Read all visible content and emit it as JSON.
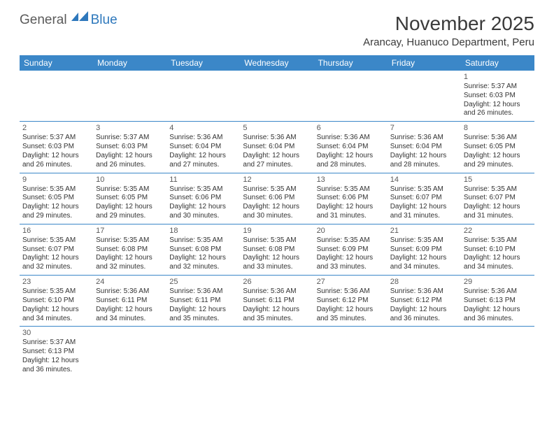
{
  "logo": {
    "general": "General",
    "blue": "Blue"
  },
  "title": "November 2025",
  "subtitle": "Arancay, Huanuco Department, Peru",
  "colors": {
    "header_bg": "#3b87c8",
    "header_text": "#ffffff",
    "text": "#333333",
    "title_text": "#3a3a3a",
    "logo_gray": "#5a5a5a",
    "logo_blue": "#2e78bc",
    "border": "#3b87c8"
  },
  "day_headers": [
    "Sunday",
    "Monday",
    "Tuesday",
    "Wednesday",
    "Thursday",
    "Friday",
    "Saturday"
  ],
  "weeks": [
    [
      null,
      null,
      null,
      null,
      null,
      null,
      {
        "n": "1",
        "sr": "Sunrise: 5:37 AM",
        "ss": "Sunset: 6:03 PM",
        "d1": "Daylight: 12 hours",
        "d2": "and 26 minutes."
      }
    ],
    [
      {
        "n": "2",
        "sr": "Sunrise: 5:37 AM",
        "ss": "Sunset: 6:03 PM",
        "d1": "Daylight: 12 hours",
        "d2": "and 26 minutes."
      },
      {
        "n": "3",
        "sr": "Sunrise: 5:37 AM",
        "ss": "Sunset: 6:03 PM",
        "d1": "Daylight: 12 hours",
        "d2": "and 26 minutes."
      },
      {
        "n": "4",
        "sr": "Sunrise: 5:36 AM",
        "ss": "Sunset: 6:04 PM",
        "d1": "Daylight: 12 hours",
        "d2": "and 27 minutes."
      },
      {
        "n": "5",
        "sr": "Sunrise: 5:36 AM",
        "ss": "Sunset: 6:04 PM",
        "d1": "Daylight: 12 hours",
        "d2": "and 27 minutes."
      },
      {
        "n": "6",
        "sr": "Sunrise: 5:36 AM",
        "ss": "Sunset: 6:04 PM",
        "d1": "Daylight: 12 hours",
        "d2": "and 28 minutes."
      },
      {
        "n": "7",
        "sr": "Sunrise: 5:36 AM",
        "ss": "Sunset: 6:04 PM",
        "d1": "Daylight: 12 hours",
        "d2": "and 28 minutes."
      },
      {
        "n": "8",
        "sr": "Sunrise: 5:36 AM",
        "ss": "Sunset: 6:05 PM",
        "d1": "Daylight: 12 hours",
        "d2": "and 29 minutes."
      }
    ],
    [
      {
        "n": "9",
        "sr": "Sunrise: 5:35 AM",
        "ss": "Sunset: 6:05 PM",
        "d1": "Daylight: 12 hours",
        "d2": "and 29 minutes."
      },
      {
        "n": "10",
        "sr": "Sunrise: 5:35 AM",
        "ss": "Sunset: 6:05 PM",
        "d1": "Daylight: 12 hours",
        "d2": "and 29 minutes."
      },
      {
        "n": "11",
        "sr": "Sunrise: 5:35 AM",
        "ss": "Sunset: 6:06 PM",
        "d1": "Daylight: 12 hours",
        "d2": "and 30 minutes."
      },
      {
        "n": "12",
        "sr": "Sunrise: 5:35 AM",
        "ss": "Sunset: 6:06 PM",
        "d1": "Daylight: 12 hours",
        "d2": "and 30 minutes."
      },
      {
        "n": "13",
        "sr": "Sunrise: 5:35 AM",
        "ss": "Sunset: 6:06 PM",
        "d1": "Daylight: 12 hours",
        "d2": "and 31 minutes."
      },
      {
        "n": "14",
        "sr": "Sunrise: 5:35 AM",
        "ss": "Sunset: 6:07 PM",
        "d1": "Daylight: 12 hours",
        "d2": "and 31 minutes."
      },
      {
        "n": "15",
        "sr": "Sunrise: 5:35 AM",
        "ss": "Sunset: 6:07 PM",
        "d1": "Daylight: 12 hours",
        "d2": "and 31 minutes."
      }
    ],
    [
      {
        "n": "16",
        "sr": "Sunrise: 5:35 AM",
        "ss": "Sunset: 6:07 PM",
        "d1": "Daylight: 12 hours",
        "d2": "and 32 minutes."
      },
      {
        "n": "17",
        "sr": "Sunrise: 5:35 AM",
        "ss": "Sunset: 6:08 PM",
        "d1": "Daylight: 12 hours",
        "d2": "and 32 minutes."
      },
      {
        "n": "18",
        "sr": "Sunrise: 5:35 AM",
        "ss": "Sunset: 6:08 PM",
        "d1": "Daylight: 12 hours",
        "d2": "and 32 minutes."
      },
      {
        "n": "19",
        "sr": "Sunrise: 5:35 AM",
        "ss": "Sunset: 6:08 PM",
        "d1": "Daylight: 12 hours",
        "d2": "and 33 minutes."
      },
      {
        "n": "20",
        "sr": "Sunrise: 5:35 AM",
        "ss": "Sunset: 6:09 PM",
        "d1": "Daylight: 12 hours",
        "d2": "and 33 minutes."
      },
      {
        "n": "21",
        "sr": "Sunrise: 5:35 AM",
        "ss": "Sunset: 6:09 PM",
        "d1": "Daylight: 12 hours",
        "d2": "and 34 minutes."
      },
      {
        "n": "22",
        "sr": "Sunrise: 5:35 AM",
        "ss": "Sunset: 6:10 PM",
        "d1": "Daylight: 12 hours",
        "d2": "and 34 minutes."
      }
    ],
    [
      {
        "n": "23",
        "sr": "Sunrise: 5:35 AM",
        "ss": "Sunset: 6:10 PM",
        "d1": "Daylight: 12 hours",
        "d2": "and 34 minutes."
      },
      {
        "n": "24",
        "sr": "Sunrise: 5:36 AM",
        "ss": "Sunset: 6:11 PM",
        "d1": "Daylight: 12 hours",
        "d2": "and 34 minutes."
      },
      {
        "n": "25",
        "sr": "Sunrise: 5:36 AM",
        "ss": "Sunset: 6:11 PM",
        "d1": "Daylight: 12 hours",
        "d2": "and 35 minutes."
      },
      {
        "n": "26",
        "sr": "Sunrise: 5:36 AM",
        "ss": "Sunset: 6:11 PM",
        "d1": "Daylight: 12 hours",
        "d2": "and 35 minutes."
      },
      {
        "n": "27",
        "sr": "Sunrise: 5:36 AM",
        "ss": "Sunset: 6:12 PM",
        "d1": "Daylight: 12 hours",
        "d2": "and 35 minutes."
      },
      {
        "n": "28",
        "sr": "Sunrise: 5:36 AM",
        "ss": "Sunset: 6:12 PM",
        "d1": "Daylight: 12 hours",
        "d2": "and 36 minutes."
      },
      {
        "n": "29",
        "sr": "Sunrise: 5:36 AM",
        "ss": "Sunset: 6:13 PM",
        "d1": "Daylight: 12 hours",
        "d2": "and 36 minutes."
      }
    ],
    [
      {
        "n": "30",
        "sr": "Sunrise: 5:37 AM",
        "ss": "Sunset: 6:13 PM",
        "d1": "Daylight: 12 hours",
        "d2": "and 36 minutes."
      },
      null,
      null,
      null,
      null,
      null,
      null
    ]
  ]
}
